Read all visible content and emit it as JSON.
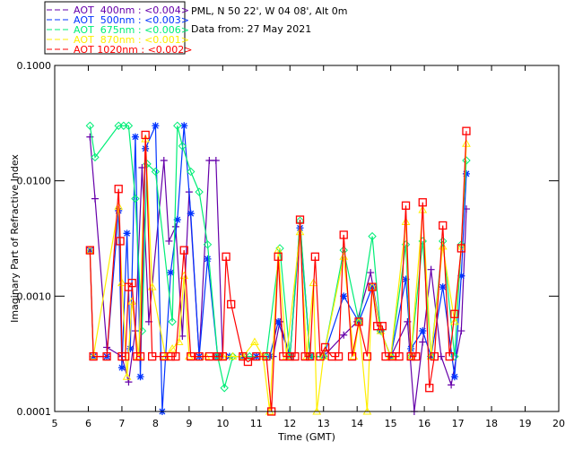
{
  "header": {
    "site": "PML, N 50 22', W 04 08', Alt 0m",
    "date": "Data from: 27 May 2021"
  },
  "legend": [
    {
      "label": "AOT  400nm : <0.004>",
      "color": "#6600aa"
    },
    {
      "label": "AOT  500nm : <0.003>",
      "color": "#0033ff"
    },
    {
      "label": "AOT  675nm : <0.006>",
      "color": "#00ee77"
    },
    {
      "label": "AOT  870nm : <0.001>",
      "color": "#ffee00"
    },
    {
      "label": "AOT 1020nm : <0.002>",
      "color": "#ff0000"
    }
  ],
  "chart_data": {
    "type": "line",
    "xlabel": "Time (GMT)",
    "ylabel": "Imaginary Part of Refractive Index",
    "xlim": [
      5,
      20
    ],
    "ylim": [
      0.0001,
      0.1
    ],
    "yscale": "log",
    "xticks": [
      "5",
      "6",
      "7",
      "8",
      "9",
      "10",
      "11",
      "12",
      "13",
      "14",
      "15",
      "16",
      "17",
      "18",
      "19",
      "20"
    ],
    "yticks": [
      {
        "v": 0.0001,
        "label": "0.0001"
      },
      {
        "v": 0.001,
        "label": "0.0010"
      },
      {
        "v": 0.01,
        "label": "0.0100"
      },
      {
        "v": 0.1,
        "label": "0.1000"
      }
    ],
    "series": [
      {
        "name": "AOT 400nm",
        "color": "#6600aa",
        "marker": "plus",
        "x": [
          6.05,
          6.2,
          6.55,
          7.0,
          7.2,
          7.4,
          7.6,
          7.8,
          8.25,
          8.4,
          8.6,
          8.8,
          9.0,
          9.3,
          9.6,
          9.8,
          10.0,
          10.6,
          11.0,
          11.5,
          11.7,
          12.0,
          12.3,
          12.6,
          13.0,
          13.6,
          14.0,
          14.4,
          14.7,
          15.0,
          15.5,
          15.7,
          15.95,
          16.2,
          16.5,
          16.8,
          17.1,
          17.25
        ],
        "y": [
          0.024,
          0.007,
          0.00036,
          0.0003,
          0.00018,
          0.0005,
          0.013,
          0.0006,
          0.015,
          0.003,
          0.004,
          0.00045,
          0.008,
          0.0003,
          0.015,
          0.015,
          0.0003,
          0.0003,
          0.0003,
          0.0003,
          0.0006,
          0.0003,
          0.0043,
          0.0003,
          0.0003,
          0.00046,
          0.0006,
          0.0016,
          0.0005,
          0.0003,
          0.0006,
          0.0001,
          0.0004,
          0.0017,
          0.0003,
          0.00017,
          0.0005,
          0.0057
        ]
      },
      {
        "name": "AOT 500nm",
        "color": "#0033ff",
        "marker": "star",
        "x": [
          6.05,
          6.15,
          6.55,
          6.9,
          7.0,
          7.15,
          7.25,
          7.4,
          7.55,
          7.7,
          8.0,
          8.2,
          8.45,
          8.65,
          8.85,
          9.05,
          9.3,
          9.55,
          9.85,
          10.2,
          10.6,
          11.0,
          11.4,
          11.65,
          12.0,
          12.3,
          12.6,
          13.0,
          13.6,
          14.05,
          14.45,
          14.7,
          15.0,
          15.45,
          15.6,
          15.95,
          16.2,
          16.55,
          16.9,
          17.1,
          17.25
        ],
        "y": [
          0.0025,
          0.0003,
          0.0003,
          0.0055,
          0.00024,
          0.0035,
          0.00035,
          0.024,
          0.0002,
          0.019,
          0.03,
          0.0001,
          0.0016,
          0.0046,
          0.03,
          0.0052,
          0.0003,
          0.0021,
          0.0003,
          0.0003,
          0.0003,
          0.0003,
          0.0003,
          0.0006,
          0.0003,
          0.0039,
          0.0003,
          0.0003,
          0.001,
          0.0006,
          0.0012,
          0.0005,
          0.0003,
          0.0014,
          0.00035,
          0.0005,
          0.0003,
          0.0012,
          0.0002,
          0.0015,
          0.0115
        ]
      },
      {
        "name": "AOT 675nm",
        "color": "#00ee77",
        "marker": "diamond",
        "x": [
          6.05,
          6.2,
          6.9,
          7.05,
          7.2,
          7.4,
          7.6,
          7.75,
          8.0,
          8.5,
          8.65,
          8.8,
          9.05,
          9.3,
          9.55,
          9.85,
          10.05,
          10.3,
          10.8,
          11.3,
          11.7,
          12.0,
          12.3,
          12.6,
          13.0,
          13.6,
          14.05,
          14.45,
          14.7,
          15.0,
          15.45,
          15.6,
          15.95,
          16.2,
          16.55,
          16.9,
          17.1,
          17.25
        ],
        "y": [
          0.03,
          0.016,
          0.03,
          0.03,
          0.03,
          0.007,
          0.0005,
          0.014,
          0.012,
          0.0006,
          0.03,
          0.02,
          0.012,
          0.008,
          0.0028,
          0.0003,
          0.00016,
          0.0003,
          0.0003,
          0.0003,
          0.0026,
          0.0003,
          0.0045,
          0.0003,
          0.0003,
          0.0025,
          0.0006,
          0.0033,
          0.0005,
          0.0003,
          0.0028,
          0.0003,
          0.003,
          0.0003,
          0.003,
          0.0003,
          0.0028,
          0.015
        ]
      },
      {
        "name": "AOT 870nm",
        "color": "#ffee00",
        "marker": "triangle",
        "x": [
          6.05,
          6.15,
          6.9,
          7.0,
          7.15,
          7.3,
          7.5,
          7.7,
          7.9,
          8.3,
          8.5,
          8.7,
          8.85,
          9.0,
          9.5,
          10.0,
          10.3,
          10.6,
          10.95,
          11.2,
          11.4,
          11.65,
          11.9,
          12.3,
          12.5,
          12.7,
          12.8,
          13.0,
          13.6,
          13.9,
          14.05,
          14.3,
          14.45,
          14.7,
          15.0,
          15.45,
          15.6,
          15.95,
          16.2,
          16.55,
          16.9,
          17.1,
          17.25
        ],
        "y": [
          0.0025,
          0.0003,
          0.006,
          0.0013,
          0.0002,
          0.0009,
          0.0003,
          0.023,
          0.0012,
          0.0003,
          0.00035,
          0.0004,
          0.0015,
          0.0003,
          0.0003,
          0.0003,
          0.0003,
          0.0003,
          0.0004,
          0.0003,
          0.0001,
          0.0025,
          0.0003,
          0.0036,
          0.0003,
          0.0013,
          0.0001,
          0.0003,
          0.0022,
          0.0003,
          0.0006,
          0.0001,
          0.0012,
          0.0005,
          0.0003,
          0.0044,
          0.0003,
          0.0056,
          0.0003,
          0.0027,
          0.0006,
          0.0027,
          0.021
        ]
      },
      {
        "name": "AOT 1020nm",
        "color": "#ff0000",
        "marker": "square",
        "x": [
          6.05,
          6.15,
          6.55,
          6.9,
          6.95,
          7.0,
          7.1,
          7.2,
          7.3,
          7.45,
          7.55,
          7.7,
          7.9,
          8.25,
          8.45,
          8.6,
          8.85,
          9.05,
          9.3,
          9.6,
          9.85,
          10.0,
          10.1,
          10.25,
          10.6,
          10.75,
          11.0,
          11.3,
          11.45,
          11.65,
          11.8,
          12.0,
          12.15,
          12.3,
          12.45,
          12.6,
          12.75,
          12.9,
          13.05,
          13.25,
          13.45,
          13.6,
          13.85,
          14.05,
          14.3,
          14.45,
          14.6,
          14.75,
          14.85,
          15.05,
          15.25,
          15.45,
          15.6,
          15.75,
          15.95,
          16.15,
          16.3,
          16.55,
          16.75,
          16.9,
          17.1,
          17.25
        ],
        "y": [
          0.0025,
          0.0003,
          0.0003,
          0.0085,
          0.003,
          0.0003,
          0.0003,
          0.0012,
          0.0013,
          0.0003,
          0.0003,
          0.025,
          0.0003,
          0.0003,
          0.0003,
          0.0003,
          0.0025,
          0.0003,
          0.0003,
          0.0003,
          0.0003,
          0.0003,
          0.0022,
          0.00085,
          0.0003,
          0.00027,
          0.0003,
          0.0003,
          0.0001,
          0.0022,
          0.0003,
          0.0003,
          0.0003,
          0.0046,
          0.0003,
          0.0003,
          0.0022,
          0.0003,
          0.00036,
          0.0003,
          0.0003,
          0.0034,
          0.0003,
          0.0006,
          0.0003,
          0.0012,
          0.00055,
          0.00055,
          0.0003,
          0.0003,
          0.0003,
          0.0061,
          0.0003,
          0.0003,
          0.0065,
          0.00016,
          0.0003,
          0.0041,
          0.0003,
          0.0007,
          0.0026,
          0.027
        ]
      }
    ]
  }
}
